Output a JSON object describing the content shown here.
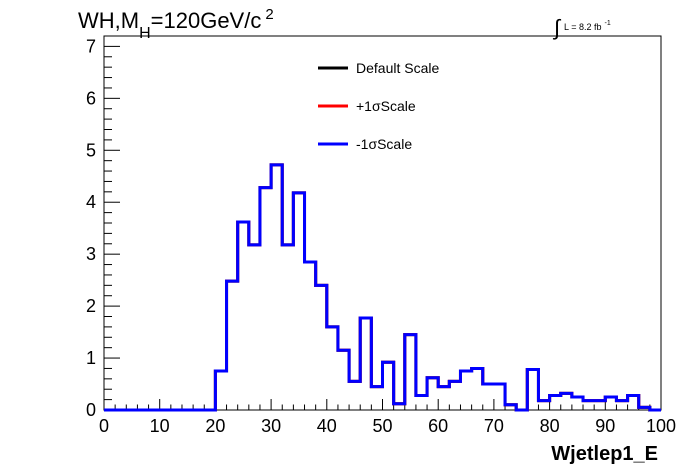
{
  "chart_data": {
    "type": "histogram",
    "title": {
      "main": "WH,M",
      "subscript": "H",
      "rest": "=120GeV/c",
      "superscript": "2"
    },
    "lumi": {
      "integral_sign": "∫",
      "text": "L = 8.2 fb",
      "superscript": "-1"
    },
    "xlabel": "Wjetlep1_E",
    "ylabel": "",
    "xlim": [
      0,
      100
    ],
    "ylim": [
      0,
      7.2
    ],
    "x_ticks": [
      0,
      10,
      20,
      30,
      40,
      50,
      60,
      70,
      80,
      90,
      100
    ],
    "y_ticks": [
      0,
      1,
      2,
      3,
      4,
      5,
      6,
      7
    ],
    "bin_width": 2,
    "bin_edges_start": 0,
    "legend_position": "top-center",
    "series": [
      {
        "name": "Default Scale",
        "color": "#000000",
        "values": [
          0,
          0,
          0,
          0,
          0,
          0,
          0,
          0,
          0,
          0,
          0.75,
          2.48,
          3.62,
          3.18,
          4.28,
          4.72,
          3.18,
          4.18,
          2.85,
          2.4,
          1.6,
          1.15,
          0.55,
          1.77,
          0.45,
          0.92,
          0.12,
          1.45,
          0.28,
          0.62,
          0.45,
          0.55,
          0.75,
          0.8,
          0.5,
          0.5,
          0.1,
          0.0,
          0.78,
          0.18,
          0.28,
          0.32,
          0.25,
          0.18,
          0.18,
          0.25,
          0.18,
          0.28,
          0.05,
          0.0
        ]
      },
      {
        "name": "+1σScale",
        "color": "#ff0000",
        "values": [
          0,
          0,
          0,
          0,
          0,
          0,
          0,
          0,
          0,
          0,
          0.75,
          2.48,
          3.62,
          3.18,
          4.28,
          4.72,
          3.18,
          4.18,
          2.85,
          2.4,
          1.6,
          1.15,
          0.55,
          1.77,
          0.45,
          0.92,
          0.12,
          1.45,
          0.28,
          0.62,
          0.45,
          0.55,
          0.75,
          0.8,
          0.5,
          0.5,
          0.1,
          0.0,
          0.78,
          0.18,
          0.28,
          0.32,
          0.25,
          0.18,
          0.18,
          0.25,
          0.18,
          0.28,
          0.05,
          0.0
        ]
      },
      {
        "name": "-1σScale",
        "color": "#0000ff",
        "values": [
          0,
          0,
          0,
          0,
          0,
          0,
          0,
          0,
          0,
          0,
          0.75,
          2.48,
          3.62,
          3.18,
          4.28,
          4.72,
          3.18,
          4.18,
          2.85,
          2.4,
          1.6,
          1.15,
          0.55,
          1.77,
          0.45,
          0.92,
          0.12,
          1.45,
          0.28,
          0.62,
          0.45,
          0.55,
          0.75,
          0.8,
          0.5,
          0.5,
          0.1,
          0.0,
          0.78,
          0.18,
          0.28,
          0.32,
          0.25,
          0.18,
          0.18,
          0.25,
          0.18,
          0.28,
          0.05,
          0.0
        ]
      }
    ]
  }
}
